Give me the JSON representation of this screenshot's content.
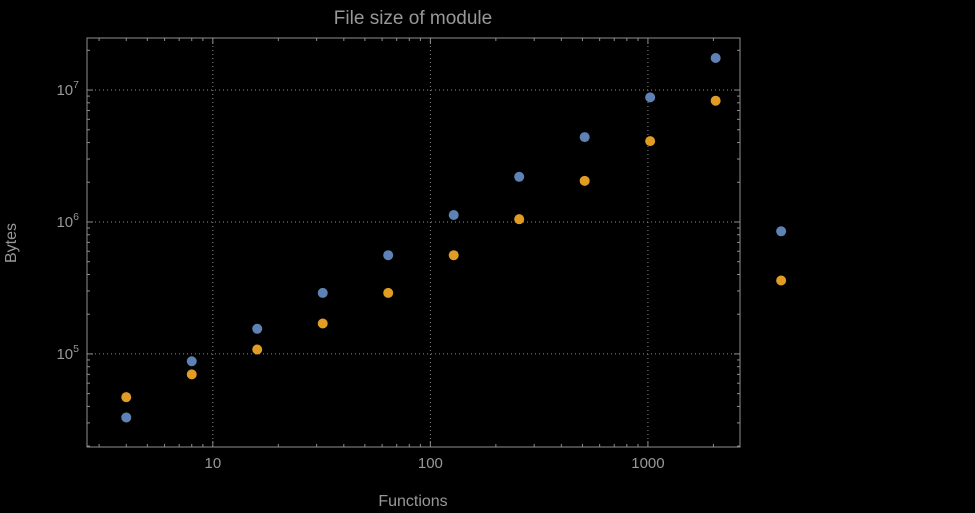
{
  "chart_data": {
    "type": "scatter",
    "title": "File size of module",
    "xlabel": "Functions",
    "ylabel": "Bytes",
    "x_scale": "log",
    "y_scale": "log",
    "xlim": [
      2.64,
      2650
    ],
    "ylim": [
      19700,
      24800000
    ],
    "grid": "dotted-major-both-axes",
    "legend": "none",
    "x_ticks": [
      {
        "value": 10,
        "label": "10"
      },
      {
        "value": 100,
        "label": "100"
      },
      {
        "value": 1000,
        "label": "1000"
      }
    ],
    "y_ticks": [
      {
        "value": 100000,
        "base": "10",
        "exponent": "5"
      },
      {
        "value": 1000000,
        "base": "10",
        "exponent": "6"
      },
      {
        "value": 10000000,
        "base": "10",
        "exponent": "7"
      }
    ],
    "x": [
      4,
      8,
      16,
      32,
      64,
      128,
      256,
      512,
      1024,
      2048,
      4096
    ],
    "series": [
      {
        "name": "series-1",
        "color": "#5e82b5",
        "values": [
          33000,
          88000,
          155000,
          290000,
          560000,
          1130000,
          2200000,
          4400000,
          8800000,
          17500000,
          850000
        ]
      },
      {
        "name": "series-2",
        "color": "#e19c24",
        "values": [
          47000,
          70000,
          108000,
          170000,
          290000,
          560000,
          1050000,
          2050000,
          4100000,
          8300000,
          360000
        ]
      }
    ],
    "colors": {
      "background": "#000000",
      "axis_text": "#989898",
      "frame": "#8f8f8f",
      "grid": "#8a8a8a"
    }
  }
}
